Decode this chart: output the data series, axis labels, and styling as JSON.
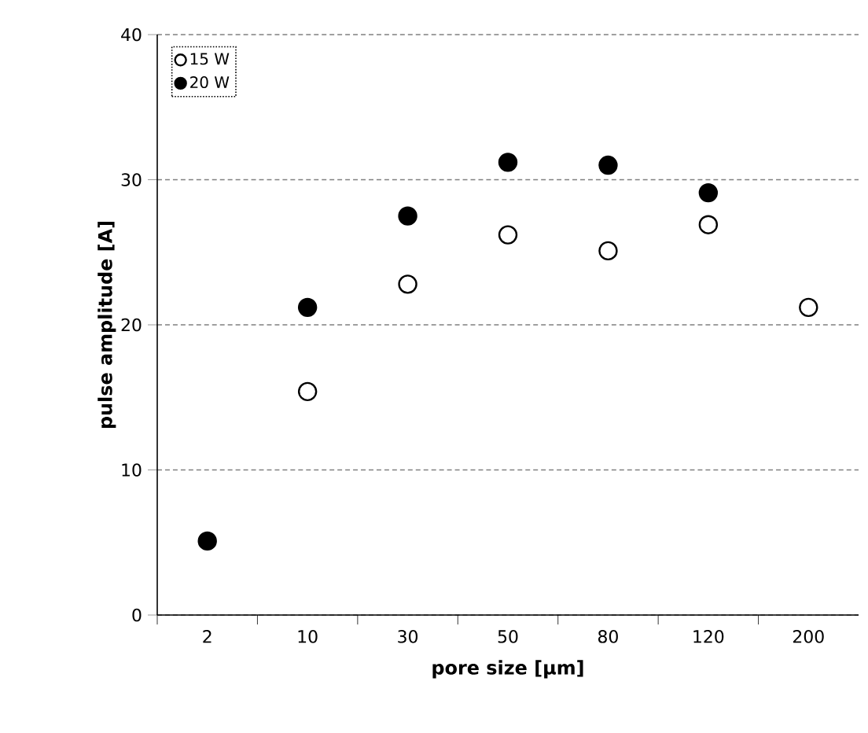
{
  "chart_data": {
    "type": "scatter",
    "xlabel": "pore size [μm]",
    "ylabel": "pulse amplitude [A]",
    "categories": [
      "2",
      "10",
      "30",
      "50",
      "80",
      "120",
      "200"
    ],
    "series": [
      {
        "name": "15 W",
        "color": "#ffffff",
        "values": [
          null,
          15.4,
          22.8,
          26.2,
          25.1,
          26.9,
          21.2
        ]
      },
      {
        "name": "20 W",
        "color": "#000000",
        "values": [
          5.1,
          21.2,
          27.5,
          31.2,
          31.0,
          29.1,
          null
        ]
      }
    ],
    "ylim": [
      0,
      40
    ],
    "yticks": [
      0,
      10,
      20,
      30,
      40
    ],
    "grid": "y",
    "legend": "top left",
    "marker": "circle"
  }
}
